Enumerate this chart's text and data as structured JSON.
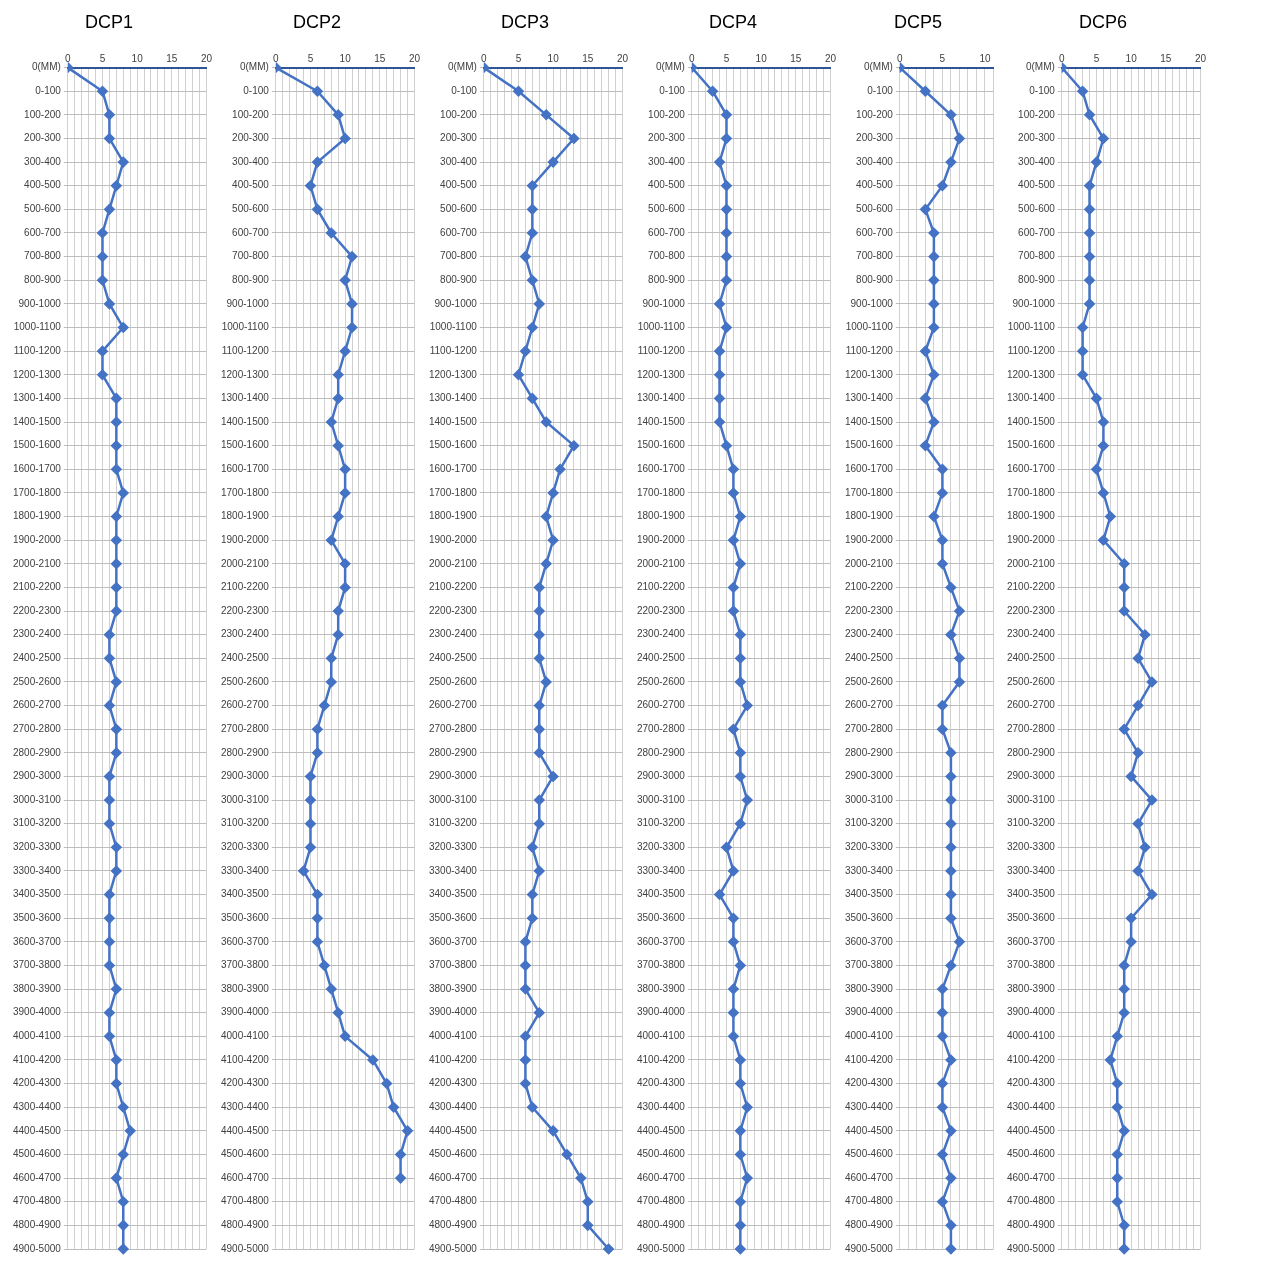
{
  "chart_data": [
    {
      "type": "line",
      "orientation": "horizontal",
      "title": "DCP1",
      "categories": [
        "0(MM)",
        "0-100",
        "100-200",
        "200-300",
        "300-400",
        "400-500",
        "500-600",
        "600-700",
        "700-800",
        "800-900",
        "900-1000",
        "1000-1100",
        "1100-1200",
        "1200-1300",
        "1300-1400",
        "1400-1500",
        "1500-1600",
        "1600-1700",
        "1700-1800",
        "1800-1900",
        "1900-2000",
        "2000-2100",
        "2100-2200",
        "2200-2300",
        "2300-2400",
        "2400-2500",
        "2500-2600",
        "2600-2700",
        "2700-2800",
        "2800-2900",
        "2900-3000",
        "3000-3100",
        "3100-3200",
        "3200-3300",
        "3300-3400",
        "3400-3500",
        "3500-3600",
        "3600-3700",
        "3700-3800",
        "3800-3900",
        "3900-4000",
        "4000-4100",
        "4100-4200",
        "4200-4300",
        "4300-4400",
        "4400-4500",
        "4500-4600",
        "4600-4700",
        "4700-4800",
        "4800-4900",
        "4900-5000"
      ],
      "values": [
        0,
        5,
        6,
        6,
        8,
        7,
        6,
        5,
        5,
        5,
        6,
        8,
        5,
        5,
        7,
        7,
        7,
        7,
        8,
        7,
        7,
        7,
        7,
        7,
        6,
        6,
        7,
        6,
        7,
        7,
        6,
        6,
        6,
        7,
        7,
        6,
        6,
        6,
        6,
        7,
        6,
        6,
        7,
        7,
        8,
        9,
        8,
        7,
        8,
        8,
        8
      ],
      "color": "#4472c4",
      "xlim": [
        0,
        20
      ],
      "xticks": [
        0,
        {
          "value": 1,
          "label": null
        },
        {
          "value": 2,
          "label": null
        },
        {
          "value": 3,
          "label": null
        },
        {
          "value": 4,
          "label": null
        },
        5,
        {
          "value": 6,
          "label": null
        },
        {
          "value": 7,
          "label": null
        },
        {
          "value": 8,
          "label": null
        },
        {
          "value": 9,
          "label": null
        },
        10,
        {
          "value": 11,
          "label": null
        },
        {
          "value": 12,
          "label": null
        },
        {
          "value": 13,
          "label": null
        },
        {
          "value": 14,
          "label": null
        },
        15,
        {
          "value": 16,
          "label": null
        },
        {
          "value": 17,
          "label": null
        },
        {
          "value": 18,
          "label": null
        },
        {
          "value": 19,
          "label": null
        },
        20
      ],
      "grid": true,
      "marker": "diamond",
      "line_style": "solid",
      "legend": false
    },
    {
      "type": "line",
      "orientation": "horizontal",
      "title": "DCP2",
      "categories": [
        "0(MM)",
        "0-100",
        "100-200",
        "200-300",
        "300-400",
        "400-500",
        "500-600",
        "600-700",
        "700-800",
        "800-900",
        "900-1000",
        "1000-1100",
        "1100-1200",
        "1200-1300",
        "1300-1400",
        "1400-1500",
        "1500-1600",
        "1600-1700",
        "1700-1800",
        "1800-1900",
        "1900-2000",
        "2000-2100",
        "2100-2200",
        "2200-2300",
        "2300-2400",
        "2400-2500",
        "2500-2600",
        "2600-2700",
        "2700-2800",
        "2800-2900",
        "2900-3000",
        "3000-3100",
        "3100-3200",
        "3200-3300",
        "3300-3400",
        "3400-3500",
        "3500-3600",
        "3600-3700",
        "3700-3800",
        "3800-3900",
        "3900-4000",
        "4000-4100",
        "4100-4200",
        "4200-4300",
        "4300-4400",
        "4400-4500",
        "4500-4600",
        "4600-4700",
        "4700-4800",
        "4800-4900",
        "4900-5000"
      ],
      "values": [
        0,
        6,
        9,
        10,
        6,
        5,
        6,
        8,
        11,
        10,
        11,
        11,
        10,
        9,
        9,
        8,
        9,
        10,
        10,
        9,
        8,
        10,
        10,
        9,
        9,
        8,
        8,
        7,
        6,
        6,
        5,
        5,
        5,
        5,
        4,
        6,
        6,
        6,
        7,
        8,
        9,
        10,
        14,
        16,
        17,
        19,
        18,
        18,
        null,
        null,
        null
      ],
      "color": "#4472c4",
      "xlim": [
        0,
        20
      ],
      "xticks": [
        0,
        {
          "value": 1,
          "label": null
        },
        {
          "value": 2,
          "label": null
        },
        {
          "value": 3,
          "label": null
        },
        {
          "value": 4,
          "label": null
        },
        5,
        {
          "value": 6,
          "label": null
        },
        {
          "value": 7,
          "label": null
        },
        {
          "value": 8,
          "label": null
        },
        {
          "value": 9,
          "label": null
        },
        10,
        {
          "value": 11,
          "label": null
        },
        {
          "value": 12,
          "label": null
        },
        {
          "value": 13,
          "label": null
        },
        {
          "value": 14,
          "label": null
        },
        15,
        {
          "value": 16,
          "label": null
        },
        {
          "value": 17,
          "label": null
        },
        {
          "value": 18,
          "label": null
        },
        {
          "value": 19,
          "label": null
        },
        20
      ],
      "grid": true,
      "marker": "diamond",
      "line_style": "solid",
      "legend": false
    },
    {
      "type": "line",
      "orientation": "horizontal",
      "title": "DCP3",
      "categories": [
        "0(MM)",
        "0-100",
        "100-200",
        "200-300",
        "300-400",
        "400-500",
        "500-600",
        "600-700",
        "700-800",
        "800-900",
        "900-1000",
        "1000-1100",
        "1100-1200",
        "1200-1300",
        "1300-1400",
        "1400-1500",
        "1500-1600",
        "1600-1700",
        "1700-1800",
        "1800-1900",
        "1900-2000",
        "2000-2100",
        "2100-2200",
        "2200-2300",
        "2300-2400",
        "2400-2500",
        "2500-2600",
        "2600-2700",
        "2700-2800",
        "2800-2900",
        "2900-3000",
        "3000-3100",
        "3100-3200",
        "3200-3300",
        "3300-3400",
        "3400-3500",
        "3500-3600",
        "3600-3700",
        "3700-3800",
        "3800-3900",
        "3900-4000",
        "4000-4100",
        "4100-4200",
        "4200-4300",
        "4300-4400",
        "4400-4500",
        "4500-4600",
        "4600-4700",
        "4700-4800",
        "4800-4900",
        "4900-5000"
      ],
      "values": [
        0,
        5,
        9,
        13,
        10,
        7,
        7,
        7,
        6,
        7,
        8,
        7,
        6,
        5,
        7,
        9,
        13,
        11,
        10,
        9,
        10,
        9,
        8,
        8,
        8,
        8,
        9,
        8,
        8,
        8,
        10,
        8,
        8,
        7,
        8,
        7,
        7,
        6,
        6,
        6,
        8,
        6,
        6,
        6,
        7,
        10,
        12,
        14,
        15,
        15,
        18
      ],
      "color": "#4472c4",
      "xlim": [
        0,
        20
      ],
      "xticks": [
        0,
        {
          "value": 1,
          "label": null
        },
        {
          "value": 2,
          "label": null
        },
        {
          "value": 3,
          "label": null
        },
        {
          "value": 4,
          "label": null
        },
        5,
        {
          "value": 6,
          "label": null
        },
        {
          "value": 7,
          "label": null
        },
        {
          "value": 8,
          "label": null
        },
        {
          "value": 9,
          "label": null
        },
        10,
        {
          "value": 11,
          "label": null
        },
        {
          "value": 12,
          "label": null
        },
        {
          "value": 13,
          "label": null
        },
        {
          "value": 14,
          "label": null
        },
        15,
        {
          "value": 16,
          "label": null
        },
        {
          "value": 17,
          "label": null
        },
        {
          "value": 18,
          "label": null
        },
        {
          "value": 19,
          "label": null
        },
        20
      ],
      "grid": true,
      "marker": "diamond",
      "line_style": "solid",
      "legend": false
    },
    {
      "type": "line",
      "orientation": "horizontal",
      "title": "DCP4",
      "categories": [
        "0(MM)",
        "0-100",
        "100-200",
        "200-300",
        "300-400",
        "400-500",
        "500-600",
        "600-700",
        "700-800",
        "800-900",
        "900-1000",
        "1000-1100",
        "1100-1200",
        "1200-1300",
        "1300-1400",
        "1400-1500",
        "1500-1600",
        "1600-1700",
        "1700-1800",
        "1800-1900",
        "1900-2000",
        "2000-2100",
        "2100-2200",
        "2200-2300",
        "2300-2400",
        "2400-2500",
        "2500-2600",
        "2600-2700",
        "2700-2800",
        "2800-2900",
        "2900-3000",
        "3000-3100",
        "3100-3200",
        "3200-3300",
        "3300-3400",
        "3400-3500",
        "3500-3600",
        "3600-3700",
        "3700-3800",
        "3800-3900",
        "3900-4000",
        "4000-4100",
        "4100-4200",
        "4200-4300",
        "4300-4400",
        "4400-4500",
        "4500-4600",
        "4600-4700",
        "4700-4800",
        "4800-4900",
        "4900-5000"
      ],
      "values": [
        0,
        3,
        5,
        5,
        4,
        5,
        5,
        5,
        5,
        5,
        4,
        5,
        4,
        4,
        4,
        4,
        5,
        6,
        6,
        7,
        6,
        7,
        6,
        6,
        7,
        7,
        7,
        8,
        6,
        7,
        7,
        8,
        7,
        5,
        6,
        4,
        6,
        6,
        7,
        6,
        6,
        6,
        7,
        7,
        8,
        7,
        7,
        8,
        7,
        7,
        7
      ],
      "color": "#4472c4",
      "xlim": [
        0,
        20
      ],
      "xticks": [
        0,
        {
          "value": 1,
          "label": null
        },
        {
          "value": 2,
          "label": null
        },
        {
          "value": 3,
          "label": null
        },
        {
          "value": 4,
          "label": null
        },
        5,
        {
          "value": 6,
          "label": null
        },
        {
          "value": 7,
          "label": null
        },
        {
          "value": 8,
          "label": null
        },
        {
          "value": 9,
          "label": null
        },
        10,
        {
          "value": 11,
          "label": null
        },
        {
          "value": 12,
          "label": null
        },
        {
          "value": 13,
          "label": null
        },
        {
          "value": 14,
          "label": null
        },
        15,
        {
          "value": 16,
          "label": null
        },
        {
          "value": 17,
          "label": null
        },
        {
          "value": 18,
          "label": null
        },
        {
          "value": 19,
          "label": null
        },
        20
      ],
      "grid": true,
      "marker": "diamond",
      "line_style": "solid",
      "legend": false
    },
    {
      "type": "line",
      "orientation": "horizontal",
      "title": "DCP5",
      "categories": [
        "0(MM)",
        "0-100",
        "100-200",
        "200-300",
        "300-400",
        "400-500",
        "500-600",
        "600-700",
        "700-800",
        "800-900",
        "900-1000",
        "1000-1100",
        "1100-1200",
        "1200-1300",
        "1300-1400",
        "1400-1500",
        "1500-1600",
        "1600-1700",
        "1700-1800",
        "1800-1900",
        "1900-2000",
        "2000-2100",
        "2100-2200",
        "2200-2300",
        "2300-2400",
        "2400-2500",
        "2500-2600",
        "2600-2700",
        "2700-2800",
        "2800-2900",
        "2900-3000",
        "3000-3100",
        "3100-3200",
        "3200-3300",
        "3300-3400",
        "3400-3500",
        "3500-3600",
        "3600-3700",
        "3700-3800",
        "3800-3900",
        "3900-4000",
        "4000-4100",
        "4100-4200",
        "4200-4300",
        "4300-4400",
        "4400-4500",
        "4500-4600",
        "4600-4700",
        "4700-4800",
        "4800-4900",
        "4900-5000"
      ],
      "values": [
        0,
        3,
        6,
        7,
        6,
        5,
        3,
        4,
        4,
        4,
        4,
        4,
        3,
        4,
        3,
        4,
        3,
        5,
        5,
        4,
        5,
        5,
        6,
        7,
        6,
        7,
        7,
        5,
        5,
        6,
        6,
        6,
        6,
        6,
        6,
        6,
        6,
        7,
        6,
        5,
        5,
        5,
        6,
        5,
        5,
        6,
        5,
        6,
        5,
        6,
        6
      ],
      "color": "#4472c4",
      "xlim": [
        0,
        11
      ],
      "xticks": [
        0,
        {
          "value": 1,
          "label": null
        },
        {
          "value": 2,
          "label": null
        },
        {
          "value": 3,
          "label": null
        },
        {
          "value": 4,
          "label": null
        },
        5,
        {
          "value": 6,
          "label": null
        },
        {
          "value": 7,
          "label": null
        },
        {
          "value": 8,
          "label": null
        },
        {
          "value": 9,
          "label": null
        },
        10,
        {
          "value": 11,
          "label": null
        }
      ],
      "grid": true,
      "marker": "diamond",
      "line_style": "solid",
      "legend": false
    },
    {
      "type": "line",
      "orientation": "horizontal",
      "title": "DCP6",
      "categories": [
        "0(MM)",
        "0-100",
        "100-200",
        "200-300",
        "300-400",
        "400-500",
        "500-600",
        "600-700",
        "700-800",
        "800-900",
        "900-1000",
        "1000-1100",
        "1100-1200",
        "1200-1300",
        "1300-1400",
        "1400-1500",
        "1500-1600",
        "1600-1700",
        "1700-1800",
        "1800-1900",
        "1900-2000",
        "2000-2100",
        "2100-2200",
        "2200-2300",
        "2300-2400",
        "2400-2500",
        "2500-2600",
        "2600-2700",
        "2700-2800",
        "2800-2900",
        "2900-3000",
        "3000-3100",
        "3100-3200",
        "3200-3300",
        "3300-3400",
        "3400-3500",
        "3500-3600",
        "3600-3700",
        "3700-3800",
        "3800-3900",
        "3900-4000",
        "4000-4100",
        "4100-4200",
        "4200-4300",
        "4300-4400",
        "4400-4500",
        "4500-4600",
        "4600-4700",
        "4700-4800",
        "4800-4900",
        "4900-5000"
      ],
      "values": [
        0,
        3,
        4,
        6,
        5,
        4,
        4,
        4,
        4,
        4,
        4,
        3,
        3,
        3,
        5,
        6,
        6,
        5,
        6,
        7,
        6,
        9,
        9,
        9,
        12,
        11,
        13,
        11,
        9,
        11,
        10,
        13,
        11,
        12,
        11,
        13,
        10,
        10,
        9,
        9,
        9,
        8,
        7,
        8,
        8,
        9,
        8,
        8,
        8,
        9,
        9
      ],
      "color": "#4472c4",
      "xlim": [
        0,
        20
      ],
      "xticks": [
        0,
        {
          "value": 1,
          "label": null
        },
        {
          "value": 2,
          "label": null
        },
        {
          "value": 3,
          "label": null
        },
        {
          "value": 4,
          "label": null
        },
        5,
        {
          "value": 6,
          "label": null
        },
        {
          "value": 7,
          "label": null
        },
        {
          "value": 8,
          "label": null
        },
        {
          "value": 9,
          "label": null
        },
        10,
        {
          "value": 11,
          "label": null
        },
        {
          "value": 12,
          "label": null
        },
        {
          "value": 13,
          "label": null
        },
        {
          "value": 14,
          "label": null
        },
        15,
        {
          "value": 16,
          "label": null
        },
        {
          "value": 17,
          "label": null
        },
        {
          "value": 18,
          "label": null
        },
        {
          "value": 19,
          "label": null
        },
        20
      ],
      "grid": true,
      "marker": "diamond",
      "line_style": "solid",
      "legend": false
    }
  ]
}
